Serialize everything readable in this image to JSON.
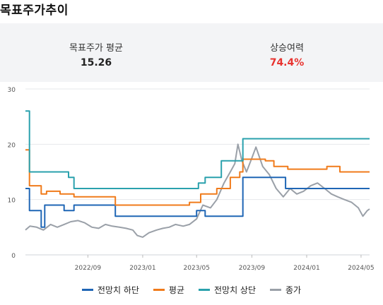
{
  "page": {
    "title": "목표주가추이"
  },
  "summary": {
    "avg_label": "목표주가 평균",
    "avg_value": "15.26",
    "upside_label": "상승여력",
    "upside_value": "74.4%"
  },
  "colors": {
    "low": "#1f66b5",
    "avg": "#f07b1b",
    "high": "#2aa1ad",
    "price": "#9aa0a8",
    "upside": "#e8332f"
  },
  "chart_data": {
    "type": "line",
    "xlabel": "",
    "ylabel": "",
    "ylim": [
      0,
      30
    ],
    "y_ticks": [
      0,
      10,
      20,
      30
    ],
    "x_range": [
      "2022-04-15",
      "2024-05-20"
    ],
    "x_ticks": [
      {
        "label": "2022/09",
        "date": "2022-09-01"
      },
      {
        "label": "2023/01",
        "date": "2023-01-01"
      },
      {
        "label": "2023/05",
        "date": "2023-05-01"
      },
      {
        "label": "2023/09",
        "date": "2023-09-01"
      },
      {
        "label": "2024/01",
        "date": "2024-01-01"
      },
      {
        "label": "2024/05",
        "date": "2024-05-01"
      }
    ],
    "grid": true,
    "legend_position": "bottom",
    "series": [
      {
        "name": "전망치 하단",
        "color_key": "low",
        "style": "step",
        "points": [
          [
            "2022-04-15",
            12
          ],
          [
            "2022-04-24",
            8
          ],
          [
            "2022-05-20",
            5
          ],
          [
            "2022-05-28",
            9
          ],
          [
            "2022-07-10",
            8
          ],
          [
            "2022-08-01",
            9
          ],
          [
            "2022-11-01",
            7
          ],
          [
            "2023-03-15",
            7
          ],
          [
            "2023-05-01",
            8
          ],
          [
            "2023-05-15",
            8
          ],
          [
            "2023-05-20",
            7
          ],
          [
            "2023-08-05",
            7
          ],
          [
            "2023-08-12",
            14
          ],
          [
            "2023-11-15",
            12
          ],
          [
            "2024-05-20",
            12
          ]
        ]
      },
      {
        "name": "평균",
        "color_key": "avg",
        "style": "step",
        "points": [
          [
            "2022-04-15",
            19
          ],
          [
            "2022-04-24",
            12.5
          ],
          [
            "2022-05-20",
            11
          ],
          [
            "2022-06-01",
            11.5
          ],
          [
            "2022-07-01",
            11
          ],
          [
            "2022-08-01",
            10.5
          ],
          [
            "2022-11-01",
            9
          ],
          [
            "2023-03-15",
            9
          ],
          [
            "2023-04-15",
            9.5
          ],
          [
            "2023-05-01",
            9.5
          ],
          [
            "2023-05-10",
            11
          ],
          [
            "2023-06-15",
            12
          ],
          [
            "2023-07-15",
            14
          ],
          [
            "2023-08-05",
            15
          ],
          [
            "2023-08-12",
            17.3
          ],
          [
            "2023-10-01",
            17
          ],
          [
            "2023-10-20",
            16
          ],
          [
            "2023-11-20",
            15.5
          ],
          [
            "2024-01-01",
            15.5
          ],
          [
            "2024-02-15",
            16
          ],
          [
            "2024-03-15",
            15
          ],
          [
            "2024-05-20",
            15
          ]
        ]
      },
      {
        "name": "전망치 상단",
        "color_key": "high",
        "style": "step",
        "points": [
          [
            "2022-04-15",
            26
          ],
          [
            "2022-04-24",
            15
          ],
          [
            "2022-07-20",
            14
          ],
          [
            "2022-08-01",
            12
          ],
          [
            "2023-05-05",
            13
          ],
          [
            "2023-05-20",
            14
          ],
          [
            "2023-06-25",
            17
          ],
          [
            "2023-08-12",
            21
          ],
          [
            "2024-05-20",
            21
          ]
        ]
      },
      {
        "name": "종가",
        "color_key": "price",
        "style": "line",
        "points": [
          [
            "2022-04-15",
            4.5
          ],
          [
            "2022-04-25",
            5.2
          ],
          [
            "2022-05-10",
            5
          ],
          [
            "2022-05-25",
            4.5
          ],
          [
            "2022-06-10",
            5.5
          ],
          [
            "2022-06-25",
            5
          ],
          [
            "2022-07-10",
            5.5
          ],
          [
            "2022-07-25",
            6
          ],
          [
            "2022-08-10",
            6.2
          ],
          [
            "2022-08-25",
            5.8
          ],
          [
            "2022-09-10",
            5
          ],
          [
            "2022-09-25",
            4.8
          ],
          [
            "2022-10-10",
            5.5
          ],
          [
            "2022-10-25",
            5.2
          ],
          [
            "2022-11-10",
            5
          ],
          [
            "2022-11-25",
            4.8
          ],
          [
            "2022-12-10",
            4.5
          ],
          [
            "2022-12-20",
            3.5
          ],
          [
            "2023-01-01",
            3.2
          ],
          [
            "2023-01-15",
            4
          ],
          [
            "2023-02-01",
            4.5
          ],
          [
            "2023-02-15",
            4.8
          ],
          [
            "2023-03-01",
            5
          ],
          [
            "2023-03-15",
            5.5
          ],
          [
            "2023-04-01",
            5.2
          ],
          [
            "2023-04-15",
            5.5
          ],
          [
            "2023-05-01",
            6.5
          ],
          [
            "2023-05-15",
            9
          ],
          [
            "2023-06-01",
            8.5
          ],
          [
            "2023-06-15",
            10
          ],
          [
            "2023-07-01",
            13
          ],
          [
            "2023-07-15",
            15
          ],
          [
            "2023-07-25",
            16.5
          ],
          [
            "2023-08-01",
            20
          ],
          [
            "2023-08-10",
            17
          ],
          [
            "2023-08-20",
            15
          ],
          [
            "2023-09-01",
            17.5
          ],
          [
            "2023-09-10",
            19.5
          ],
          [
            "2023-09-25",
            16
          ],
          [
            "2023-10-10",
            14.5
          ],
          [
            "2023-10-25",
            12
          ],
          [
            "2023-11-10",
            10.5
          ],
          [
            "2023-11-25",
            12
          ],
          [
            "2023-12-10",
            11
          ],
          [
            "2023-12-25",
            11.5
          ],
          [
            "2024-01-10",
            12.5
          ],
          [
            "2024-01-25",
            13
          ],
          [
            "2024-02-10",
            12
          ],
          [
            "2024-02-25",
            11
          ],
          [
            "2024-03-10",
            10.5
          ],
          [
            "2024-03-25",
            10
          ],
          [
            "2024-04-10",
            9.5
          ],
          [
            "2024-04-25",
            8.5
          ],
          [
            "2024-05-05",
            7
          ],
          [
            "2024-05-15",
            8
          ],
          [
            "2024-05-20",
            8.3
          ]
        ]
      }
    ]
  }
}
